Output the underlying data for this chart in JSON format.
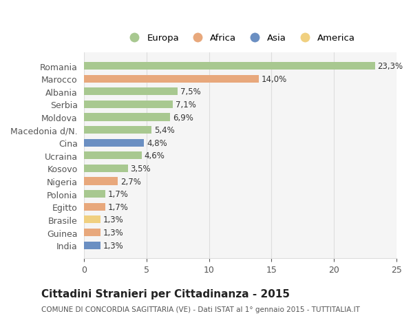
{
  "countries": [
    "Romania",
    "Marocco",
    "Albania",
    "Serbia",
    "Moldova",
    "Macedonia d/N.",
    "Cina",
    "Ucraina",
    "Kosovo",
    "Nigeria",
    "Polonia",
    "Egitto",
    "Brasile",
    "Guinea",
    "India"
  ],
  "values": [
    23.3,
    14.0,
    7.5,
    7.1,
    6.9,
    5.4,
    4.8,
    4.6,
    3.5,
    2.7,
    1.7,
    1.7,
    1.3,
    1.3,
    1.3
  ],
  "labels": [
    "23,3%",
    "14,0%",
    "7,5%",
    "7,1%",
    "6,9%",
    "5,4%",
    "4,8%",
    "4,6%",
    "3,5%",
    "2,7%",
    "1,7%",
    "1,7%",
    "1,3%",
    "1,3%",
    "1,3%"
  ],
  "colors": [
    "#a8c890",
    "#e8a87c",
    "#a8c890",
    "#a8c890",
    "#a8c890",
    "#a8c890",
    "#6b8fc2",
    "#a8c890",
    "#a8c890",
    "#e8a87c",
    "#a8c890",
    "#e8a87c",
    "#f0d080",
    "#e8a87c",
    "#6b8fc2"
  ],
  "legend_labels": [
    "Europa",
    "Africa",
    "Asia",
    "America"
  ],
  "legend_colors": [
    "#a8c890",
    "#e8a87c",
    "#6b8fc2",
    "#f0d080"
  ],
  "title": "Cittadini Stranieri per Cittadinanza - 2015",
  "subtitle": "COMUNE DI CONCORDIA SAGITTARIA (VE) - Dati ISTAT al 1° gennaio 2015 - TUTTITALIA.IT",
  "xlim": [
    0,
    25
  ],
  "xticks": [
    0,
    5,
    10,
    15,
    20,
    25
  ],
  "background_color": "#ffffff",
  "bar_background": "#f5f5f5",
  "grid_color": "#dddddd"
}
